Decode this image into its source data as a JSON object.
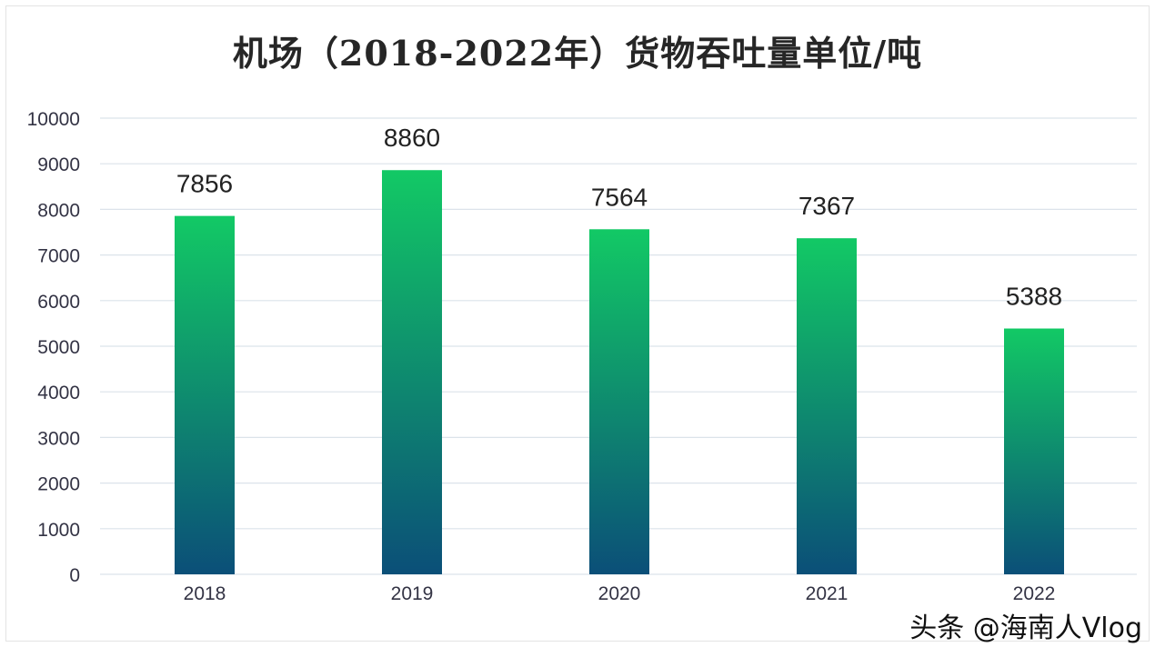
{
  "chart_data": {
    "type": "bar",
    "title": "机场（2018-2022年）货物吞吐量单位/吨",
    "categories": [
      "2018",
      "2019",
      "2020",
      "2021",
      "2022"
    ],
    "values": [
      7856,
      8860,
      7564,
      7367,
      5388
    ],
    "xlabel": "",
    "ylabel": "",
    "ylim": [
      0,
      10000
    ],
    "yticks": [
      "0",
      "1000",
      "2000",
      "3000",
      "4000",
      "5000",
      "6000",
      "7000",
      "8000",
      "9000",
      "10000"
    ],
    "grid": true,
    "colors": {
      "bar_top": "#12c965",
      "bar_bottom": "#0b4f78",
      "grid": "#dce3ea",
      "text": "#333344"
    }
  },
  "watermark": "头条 @海南人Vlog"
}
